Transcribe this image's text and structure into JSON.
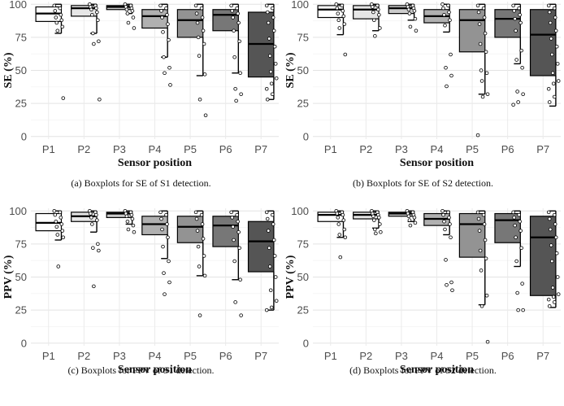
{
  "chart_data": [
    {
      "type": "boxplot",
      "caption": "(a)  Boxplots for SE of S1 detection.",
      "xlabel": "Sensor position",
      "ylabel": "SE (%)",
      "categories": [
        "P1",
        "P2",
        "P3",
        "P4",
        "P5",
        "P6",
        "P7"
      ],
      "ylim": [
        -2,
        102
      ],
      "yticks": [
        0,
        25,
        50,
        75,
        100
      ],
      "boxes": [
        {
          "low": 78,
          "q1": 87,
          "median": 93,
          "q3": 98,
          "high": 100,
          "fill": "#ffffff"
        },
        {
          "low": 78,
          "q1": 91,
          "median": 97,
          "q3": 99,
          "high": 100,
          "fill": "#e6e6e6"
        },
        {
          "low": 93,
          "q1": 96,
          "median": 98,
          "q3": 99,
          "high": 100,
          "fill": "#cccccc"
        },
        {
          "low": 60,
          "q1": 82,
          "median": 91,
          "q3": 96,
          "high": 100,
          "fill": "#b0b0b0"
        },
        {
          "low": 46,
          "q1": 75,
          "median": 88,
          "q3": 96,
          "high": 100,
          "fill": "#939393"
        },
        {
          "low": 48,
          "q1": 80,
          "median": 92,
          "q3": 96,
          "high": 100,
          "fill": "#777777"
        },
        {
          "low": 28,
          "q1": 45,
          "median": 70,
          "q3": 94,
          "high": 100,
          "fill": "#555555"
        }
      ],
      "points": [
        [
          99,
          97,
          95,
          92,
          90,
          88,
          86,
          83,
          80,
          29
        ],
        [
          100,
          99,
          98,
          97,
          96,
          94,
          92,
          88,
          78,
          72,
          70,
          28
        ],
        [
          100,
          99,
          98,
          97,
          96,
          95,
          93,
          90,
          86,
          82
        ],
        [
          99,
          97,
          95,
          92,
          90,
          85,
          79,
          73,
          60,
          52,
          48,
          39
        ],
        [
          99,
          97,
          93,
          90,
          86,
          80,
          75,
          70,
          61,
          47,
          28,
          16
        ],
        [
          99,
          97,
          95,
          93,
          90,
          86,
          80,
          72,
          60,
          48,
          36,
          32,
          27
        ],
        [
          99,
          97,
          94,
          90,
          86,
          80,
          74,
          68,
          61,
          55,
          49,
          44,
          40,
          36,
          32,
          28
        ]
      ]
    },
    {
      "type": "boxplot",
      "caption": "(b)  Boxplots for SE of S2 detection.",
      "xlabel": "Sensor position",
      "ylabel": "SE (%)",
      "categories": [
        "P1",
        "P2",
        "P3",
        "P4",
        "P5",
        "P6",
        "P7"
      ],
      "ylim": [
        -2,
        102
      ],
      "yticks": [
        0,
        25,
        50,
        75,
        100
      ],
      "boxes": [
        {
          "low": 77,
          "q1": 90,
          "median": 96,
          "q3": 99,
          "high": 100,
          "fill": "#ffffff"
        },
        {
          "low": 80,
          "q1": 89,
          "median": 96,
          "q3": 99,
          "high": 100,
          "fill": "#e6e6e6"
        },
        {
          "low": 88,
          "q1": 93,
          "median": 97,
          "q3": 99,
          "high": 100,
          "fill": "#cccccc"
        },
        {
          "low": 79,
          "q1": 86,
          "median": 91,
          "q3": 96,
          "high": 100,
          "fill": "#b0b0b0"
        },
        {
          "low": 32,
          "q1": 64,
          "median": 88,
          "q3": 96,
          "high": 100,
          "fill": "#939393"
        },
        {
          "low": 55,
          "q1": 75,
          "median": 89,
          "q3": 96,
          "high": 100,
          "fill": "#777777"
        },
        {
          "low": 23,
          "q1": 46,
          "median": 77,
          "q3": 96,
          "high": 100,
          "fill": "#555555"
        }
      ],
      "points": [
        [
          100,
          99,
          97,
          95,
          93,
          91,
          88,
          85,
          82,
          62
        ],
        [
          100,
          99,
          98,
          96,
          94,
          92,
          88,
          82,
          76
        ],
        [
          100,
          99,
          98,
          97,
          96,
          95,
          93,
          89,
          83,
          80
        ],
        [
          100,
          99,
          97,
          94,
          92,
          88,
          84,
          62,
          52,
          46,
          38
        ],
        [
          99,
          97,
          94,
          90,
          85,
          78,
          70,
          64,
          50,
          48,
          42,
          32,
          30,
          1
        ],
        [
          99,
          97,
          95,
          92,
          89,
          86,
          80,
          65,
          58,
          52,
          34,
          32,
          26,
          24
        ],
        [
          99,
          97,
          94,
          90,
          86,
          80,
          74,
          68,
          62,
          55,
          48,
          42,
          40,
          36,
          30,
          26
        ]
      ]
    },
    {
      "type": "boxplot",
      "caption": "(c)  Boxplots for PPV of S1 detection.",
      "xlabel": "Sensor position",
      "ylabel": "PPV (%)",
      "categories": [
        "P1",
        "P2",
        "P3",
        "P4",
        "P5",
        "P6",
        "P7"
      ],
      "ylim": [
        -2,
        102
      ],
      "yticks": [
        0,
        25,
        50,
        75,
        100
      ],
      "boxes": [
        {
          "low": 78,
          "q1": 85,
          "median": 91,
          "q3": 98,
          "high": 100,
          "fill": "#ffffff"
        },
        {
          "low": 84,
          "q1": 92,
          "median": 96,
          "q3": 99,
          "high": 100,
          "fill": "#e6e6e6"
        },
        {
          "low": 90,
          "q1": 95,
          "median": 98,
          "q3": 99,
          "high": 100,
          "fill": "#cccccc"
        },
        {
          "low": 64,
          "q1": 82,
          "median": 90,
          "q3": 96,
          "high": 100,
          "fill": "#b0b0b0"
        },
        {
          "low": 51,
          "q1": 76,
          "median": 88,
          "q3": 96,
          "high": 100,
          "fill": "#939393"
        },
        {
          "low": 48,
          "q1": 73,
          "median": 89,
          "q3": 96,
          "high": 100,
          "fill": "#777777"
        },
        {
          "low": 25,
          "q1": 54,
          "median": 77,
          "q3": 92,
          "high": 100,
          "fill": "#555555"
        }
      ],
      "points": [
        [
          100,
          99,
          97,
          95,
          92,
          90,
          88,
          85,
          82,
          80,
          58
        ],
        [
          100,
          99,
          98,
          97,
          95,
          93,
          90,
          75,
          72,
          70,
          43
        ],
        [
          100,
          99,
          98,
          97,
          96,
          94,
          92,
          89,
          86,
          84
        ],
        [
          99,
          97,
          94,
          90,
          86,
          80,
          73,
          62,
          53,
          46,
          37
        ],
        [
          99,
          97,
          94,
          90,
          85,
          79,
          73,
          66,
          58,
          51,
          21
        ],
        [
          99,
          97,
          95,
          92,
          88,
          84,
          78,
          72,
          62,
          48,
          31,
          21
        ],
        [
          99,
          97,
          94,
          90,
          85,
          78,
          72,
          66,
          58,
          50,
          40,
          32,
          27,
          25
        ]
      ]
    },
    {
      "type": "boxplot",
      "caption": "(d)  Boxplots for PPV of S2 detection.",
      "xlabel": "Sensor position",
      "ylabel": "PPV (%)",
      "categories": [
        "P1",
        "P2",
        "P3",
        "P4",
        "P5",
        "P6",
        "P7"
      ],
      "ylim": [
        -2,
        102
      ],
      "yticks": [
        0,
        25,
        50,
        75,
        100
      ],
      "boxes": [
        {
          "low": 80,
          "q1": 92,
          "median": 97,
          "q3": 99,
          "high": 100,
          "fill": "#ffffff"
        },
        {
          "low": 87,
          "q1": 94,
          "median": 97,
          "q3": 99,
          "high": 100,
          "fill": "#e6e6e6"
        },
        {
          "low": 92,
          "q1": 96,
          "median": 98,
          "q3": 99,
          "high": 100,
          "fill": "#cccccc"
        },
        {
          "low": 82,
          "q1": 89,
          "median": 94,
          "q3": 98,
          "high": 100,
          "fill": "#b0b0b0"
        },
        {
          "low": 29,
          "q1": 65,
          "median": 90,
          "q3": 98,
          "high": 100,
          "fill": "#939393"
        },
        {
          "low": 58,
          "q1": 76,
          "median": 93,
          "q3": 98,
          "high": 100,
          "fill": "#777777"
        },
        {
          "low": 27,
          "q1": 36,
          "median": 80,
          "q3": 96,
          "high": 100,
          "fill": "#555555"
        }
      ],
      "points": [
        [
          100,
          99,
          98,
          97,
          95,
          93,
          90,
          86,
          82,
          80,
          65
        ],
        [
          100,
          99,
          98,
          97,
          96,
          95,
          93,
          90,
          86,
          84,
          83
        ],
        [
          100,
          99,
          98,
          97,
          96,
          95,
          93,
          91,
          89
        ],
        [
          100,
          99,
          97,
          95,
          92,
          90,
          86,
          80,
          63,
          46,
          44,
          40
        ],
        [
          99,
          97,
          94,
          90,
          85,
          78,
          70,
          64,
          55,
          36,
          28,
          1
        ],
        [
          99,
          97,
          95,
          92,
          89,
          85,
          80,
          72,
          62,
          45,
          38,
          25,
          25
        ],
        [
          99,
          97,
          94,
          90,
          86,
          80,
          74,
          68,
          62,
          50,
          42,
          37,
          35,
          33,
          31,
          28
        ]
      ]
    }
  ]
}
